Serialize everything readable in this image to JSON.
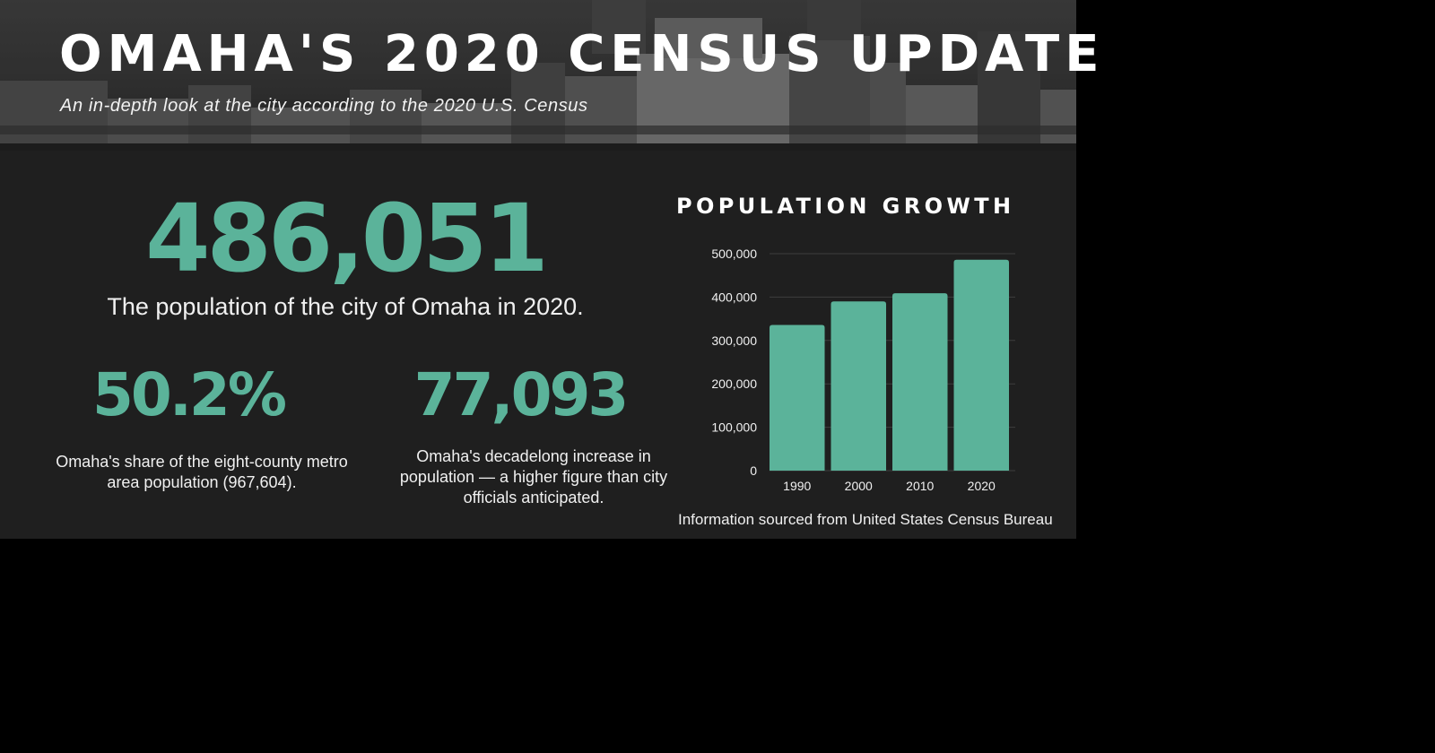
{
  "header": {
    "title": "OMAHA'S 2020 CENSUS UPDATE",
    "subtitle": "An in-depth look at the city according to the 2020 U.S. Census"
  },
  "stats": {
    "population": {
      "value": "486,051",
      "description": "The population of the city of Omaha in 2020."
    },
    "metro_share": {
      "value": "50.2%",
      "description": "Omaha's share of the eight-county metro area population (967,604)."
    },
    "decade_increase": {
      "value": "77,093",
      "description": "Omaha's decadelong increase in population — a higher figure than city officials anticipated."
    }
  },
  "chart_data": {
    "type": "bar",
    "title": "POPULATION GROWTH",
    "categories": [
      "1990",
      "2000",
      "2010",
      "2020"
    ],
    "values": [
      335795,
      390007,
      408958,
      486051
    ],
    "xlabel": "",
    "ylabel": "",
    "ylim": [
      0,
      500000
    ],
    "yticks": [
      "0",
      "100,000",
      "200,000",
      "300,000",
      "400,000",
      "500,000"
    ],
    "grid": true,
    "legend": "none",
    "bar_color": "#5bb39a"
  },
  "footer": {
    "source": "Information sourced from United States Census Bureau"
  },
  "colors": {
    "accent": "#5bb39a",
    "background": "#1f1f1f",
    "text": "#ffffff"
  }
}
